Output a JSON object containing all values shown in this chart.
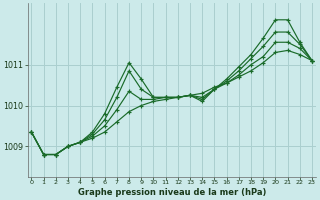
{
  "xlabel": "Graphe pression niveau de la mer (hPa)",
  "bg_color": "#cceaea",
  "grid_color": "#aacfcf",
  "line_color": "#1a6b2a",
  "x_ticks": [
    0,
    1,
    2,
    3,
    4,
    5,
    6,
    7,
    8,
    9,
    10,
    11,
    12,
    13,
    14,
    15,
    16,
    17,
    18,
    19,
    20,
    21,
    22,
    23
  ],
  "y_ticks": [
    1009,
    1010,
    1011
  ],
  "xlim": [
    -0.3,
    23.3
  ],
  "ylim": [
    1008.25,
    1012.5
  ],
  "series": [
    [
      1009.35,
      1008.8,
      1008.8,
      1009.0,
      1009.1,
      1009.2,
      1009.35,
      1009.6,
      1009.85,
      1010.0,
      1010.1,
      1010.15,
      1010.2,
      1010.25,
      1010.3,
      1010.45,
      1010.55,
      1010.7,
      1010.85,
      1011.05,
      1011.3,
      1011.35,
      1011.25,
      1011.1
    ],
    [
      1009.35,
      1008.8,
      1008.8,
      1009.0,
      1009.1,
      1009.25,
      1009.5,
      1009.9,
      1010.35,
      1010.15,
      1010.15,
      1010.2,
      1010.2,
      1010.25,
      1010.2,
      1010.4,
      1010.55,
      1010.75,
      1011.0,
      1011.2,
      1011.55,
      1011.55,
      1011.4,
      1011.1
    ],
    [
      1009.35,
      1008.8,
      1008.8,
      1009.0,
      1009.1,
      1009.3,
      1009.65,
      1010.2,
      1010.85,
      1010.4,
      1010.2,
      1010.2,
      1010.2,
      1010.25,
      1010.15,
      1010.4,
      1010.6,
      1010.85,
      1011.15,
      1011.45,
      1011.8,
      1011.8,
      1011.5,
      1011.1
    ],
    [
      1009.35,
      1008.8,
      1008.8,
      1009.0,
      1009.1,
      1009.35,
      1009.8,
      1010.45,
      1011.05,
      1010.65,
      1010.2,
      1010.2,
      1010.2,
      1010.25,
      1010.1,
      1010.4,
      1010.65,
      1010.95,
      1011.25,
      1011.65,
      1012.1,
      1012.1,
      1011.55,
      1011.1
    ]
  ]
}
